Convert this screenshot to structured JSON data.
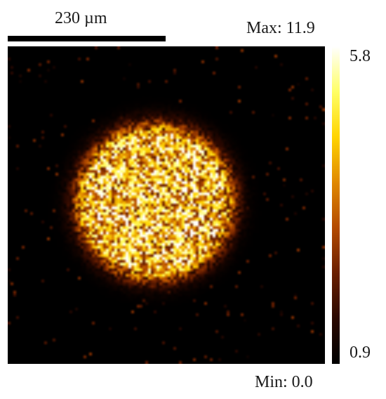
{
  "scale_bar": {
    "label": "230 µm"
  },
  "image": {
    "max_label": "Max: 11.9",
    "min_label": "Min: 0.0",
    "colormap": [
      "#000000",
      "#2a0800",
      "#6a1f00",
      "#b34a00",
      "#e08800",
      "#ffd400",
      "#ffff66",
      "#ffffff"
    ]
  },
  "colorbar": {
    "top_label": "5.8",
    "bottom_label": "0.9"
  }
}
